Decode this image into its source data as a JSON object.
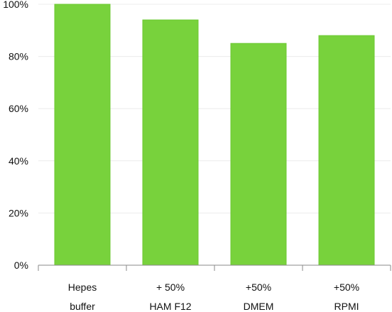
{
  "chart_data": {
    "type": "bar",
    "categories": [
      [
        "Hepes",
        "buffer"
      ],
      [
        "+ 50%",
        "HAM F12"
      ],
      [
        "+50%",
        "DMEM"
      ],
      [
        "+50%",
        "RPMI"
      ]
    ],
    "values": [
      100,
      94,
      85,
      88
    ],
    "ylim": [
      0,
      100
    ],
    "yticks": [
      0,
      20,
      40,
      60,
      80,
      100
    ],
    "ytick_labels": [
      "0%",
      "20%",
      "40%",
      "60%",
      "80%",
      "100%"
    ],
    "grid": true,
    "legend": false,
    "title": "",
    "xlabel": "",
    "ylabel": "",
    "colors": {
      "bar": "#78d23c",
      "bar_edge": "#6cc832"
    }
  }
}
